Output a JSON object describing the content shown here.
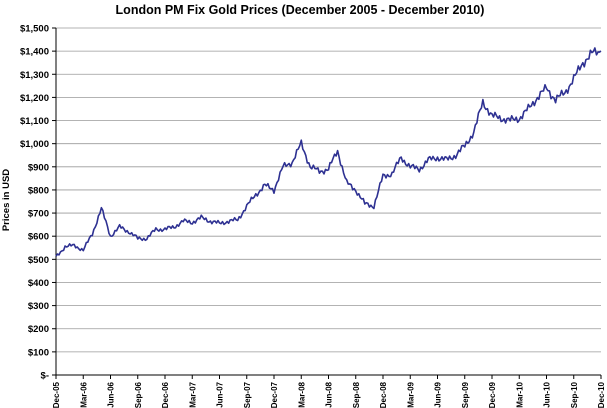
{
  "chart_data": {
    "type": "line",
    "title": "London PM Fix Gold Prices (December 2005 - December 2010)",
    "xlabel": "",
    "ylabel": "Prices in USD",
    "ylim": [
      0,
      1500
    ],
    "y_ticks": [
      {
        "value": 0,
        "label": "$-"
      },
      {
        "value": 100,
        "label": "$100"
      },
      {
        "value": 200,
        "label": "$200"
      },
      {
        "value": 300,
        "label": "$300"
      },
      {
        "value": 400,
        "label": "$400"
      },
      {
        "value": 500,
        "label": "$500"
      },
      {
        "value": 600,
        "label": "$600"
      },
      {
        "value": 700,
        "label": "$700"
      },
      {
        "value": 800,
        "label": "$800"
      },
      {
        "value": 900,
        "label": "$900"
      },
      {
        "value": 1000,
        "label": "$1,000"
      },
      {
        "value": 1100,
        "label": "$1,100"
      },
      {
        "value": 1200,
        "label": "$1,200"
      },
      {
        "value": 1300,
        "label": "$1,300"
      },
      {
        "value": 1400,
        "label": "$1,400"
      },
      {
        "value": 1500,
        "label": "$1,500"
      }
    ],
    "x_ticks": [
      "Dec-05",
      "Mar-06",
      "Jun-06",
      "Sep-06",
      "Dec-06",
      "Mar-07",
      "Jun-07",
      "Sep-07",
      "Dec-07",
      "Mar-08",
      "Jun-08",
      "Sep-08",
      "Dec-08",
      "Mar-09",
      "Jun-09",
      "Sep-09",
      "Dec-09",
      "Mar-10",
      "Jun-10",
      "Sep-10",
      "Dec-10"
    ],
    "grid": true,
    "legend": "none",
    "line_color": "#2e3192",
    "series": [
      {
        "x": [
          "2005-12",
          "2006-01",
          "2006-02",
          "2006-03",
          "2006-04",
          "2006-05",
          "2006-06",
          "2006-07",
          "2006-08",
          "2006-09",
          "2006-10",
          "2006-11",
          "2006-12",
          "2007-01",
          "2007-02",
          "2007-03",
          "2007-04",
          "2007-05",
          "2007-06",
          "2007-07",
          "2007-08",
          "2007-09",
          "2007-10",
          "2007-11",
          "2007-12",
          "2008-01",
          "2008-02",
          "2008-03",
          "2008-04",
          "2008-05",
          "2008-06",
          "2008-07",
          "2008-08",
          "2008-09",
          "2008-10",
          "2008-11",
          "2008-12",
          "2009-01",
          "2009-02",
          "2009-03",
          "2009-04",
          "2009-05",
          "2009-06",
          "2009-07",
          "2009-08",
          "2009-09",
          "2009-10",
          "2009-11",
          "2009-12",
          "2010-01",
          "2010-02",
          "2010-03",
          "2010-04",
          "2010-05",
          "2010-06",
          "2010-07",
          "2010-08",
          "2010-09",
          "2010-10",
          "2010-11",
          "2010-12"
        ],
        "values": [
          510,
          555,
          560,
          540,
          610,
          720,
          600,
          640,
          620,
          590,
          590,
          630,
          630,
          640,
          665,
          660,
          680,
          665,
          655,
          665,
          670,
          730,
          780,
          820,
          800,
          900,
          920,
          1000,
          900,
          880,
          890,
          970,
          830,
          800,
          740,
          730,
          860,
          870,
          940,
          900,
          890,
          930,
          940,
          930,
          950,
          990,
          1050,
          1180,
          1120,
          1110,
          1100,
          1110,
          1150,
          1200,
          1240,
          1190,
          1220,
          1280,
          1350,
          1390,
          1400
        ]
      }
    ]
  }
}
